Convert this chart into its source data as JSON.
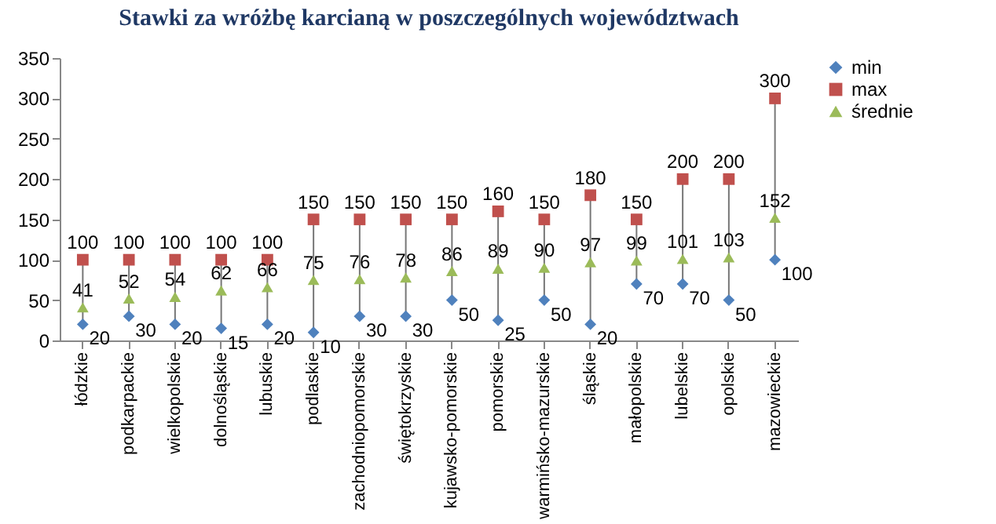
{
  "chart_data": {
    "type": "scatter",
    "title": "Stawki za wróżbę karcianą w poszczególnych województwach",
    "categories": [
      "łódzkie",
      "podkarpackie",
      "wielkopolskie",
      "dolnośląskie",
      "lubuskie",
      "podlaskie",
      "zachodniopomorskie",
      "świętokrzyskie",
      "kujawsko-pomorskie",
      "pomorskie",
      "warmińsko-mazurskie",
      "śląskie",
      "małopolskie",
      "lubelskie",
      "opolskie",
      "mazowieckie"
    ],
    "series": [
      {
        "name": "min",
        "color": "#4f81bd",
        "marker": "diamond",
        "values": [
          20,
          30,
          20,
          15,
          20,
          10,
          30,
          30,
          50,
          25,
          50,
          20,
          70,
          70,
          50,
          100
        ]
      },
      {
        "name": "max",
        "color": "#c0504d",
        "marker": "square",
        "values": [
          100,
          100,
          100,
          100,
          100,
          150,
          150,
          150,
          150,
          160,
          150,
          180,
          150,
          200,
          200,
          300
        ]
      },
      {
        "name": "średnie",
        "color": "#9bbb59",
        "marker": "triangle",
        "values": [
          41,
          52,
          54,
          62,
          66,
          75,
          76,
          78,
          86,
          89,
          90,
          97,
          99,
          101,
          103,
          152
        ]
      }
    ],
    "ylim": [
      0,
      350
    ],
    "yticks": [
      0,
      50,
      100,
      150,
      200,
      250,
      300,
      350
    ],
    "grid": false,
    "legend": "right",
    "data_labels": true
  }
}
